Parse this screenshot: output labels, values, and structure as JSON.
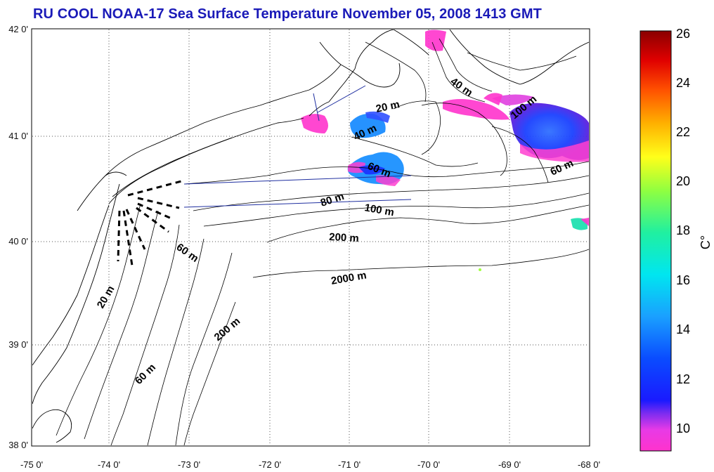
{
  "title": "RU COOL  NOAA-17 Sea Surface Temperature November 05, 2008 1413 GMT",
  "map": {
    "lon_range": [
      -75,
      -68
    ],
    "lat_range": [
      38,
      42
    ],
    "lon_ticks": [
      "-75 0'",
      "-74 0'",
      "-73 0'",
      "-72 0'",
      "-71 0'",
      "-70 0'",
      "-69 0'",
      "-68 0'"
    ],
    "lat_ticks": [
      "38 0'",
      "39 0'",
      "40 0'",
      "41 0'",
      "42 0'"
    ],
    "grid": "dotted"
  },
  "contour_labels": [
    "40 m",
    "20 m",
    "40 m",
    "60 m",
    "100 m",
    "60 m",
    "80 m",
    "100 m",
    "200 m",
    "60 m",
    "2000 m",
    "20 m",
    "200 m",
    "60 m"
  ],
  "colorbar": {
    "unit": "C°",
    "range": [
      9,
      26
    ],
    "ticks": [
      "26",
      "24",
      "22",
      "20",
      "18",
      "16",
      "14",
      "12",
      "10"
    ]
  },
  "colors": {
    "title": "#1a1ab8",
    "track": "#1f2fa0"
  }
}
